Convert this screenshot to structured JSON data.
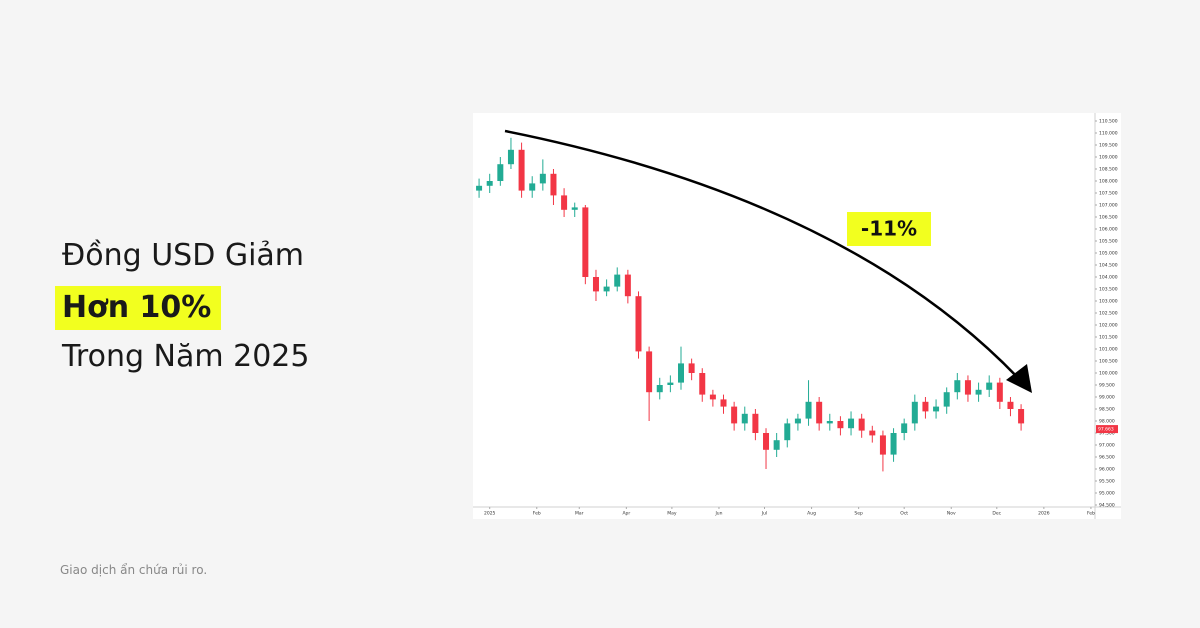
{
  "headline": {
    "line1": "Đồng USD Giảm",
    "highlight": "Hơn 10%",
    "line3": "Trong Năm 2025"
  },
  "disclaimer": "Giao dịch ẩn chứa rủi ro.",
  "chart_data": {
    "type": "candlestick",
    "annotation": "-11%",
    "up_color": "#22ab94",
    "down_color": "#f23645",
    "last_price": 97.663,
    "xlim": [
      -11,
      400
    ],
    "xticks": [
      {
        "value": 0,
        "label": "2025"
      },
      {
        "value": 31,
        "label": "Feb"
      },
      {
        "value": 59,
        "label": "Mar"
      },
      {
        "value": 90,
        "label": "Apr"
      },
      {
        "value": 120,
        "label": "May"
      },
      {
        "value": 151,
        "label": "Jun"
      },
      {
        "value": 181,
        "label": "Jul"
      },
      {
        "value": 212,
        "label": "Aug"
      },
      {
        "value": 243,
        "label": "Sep"
      },
      {
        "value": 273,
        "label": "Oct"
      },
      {
        "value": 304,
        "label": "Nov"
      },
      {
        "value": 334,
        "label": "Dec"
      },
      {
        "value": 365,
        "label": "2026"
      },
      {
        "value": 396,
        "label": "Feb"
      }
    ],
    "ylim": [
      94.5,
      110.5
    ],
    "yticks": [
      {
        "value": 94.5,
        "label": "94.500"
      },
      {
        "value": 95,
        "label": "95.000"
      },
      {
        "value": 95.5,
        "label": "95.500"
      },
      {
        "value": 96,
        "label": "96.000"
      },
      {
        "value": 96.5,
        "label": "96.500"
      },
      {
        "value": 97,
        "label": "97.000"
      },
      {
        "value": 97.5,
        "label": "97.500"
      },
      {
        "value": 98,
        "label": "98.000"
      },
      {
        "value": 98.5,
        "label": "98.500"
      },
      {
        "value": 99,
        "label": "99.000"
      },
      {
        "value": 99.5,
        "label": "99.500"
      },
      {
        "value": 100,
        "label": "100.000"
      },
      {
        "value": 100.5,
        "label": "100.500"
      },
      {
        "value": 101,
        "label": "101.000"
      },
      {
        "value": 101.5,
        "label": "101.500"
      },
      {
        "value": 102,
        "label": "102.000"
      },
      {
        "value": 102.5,
        "label": "102.500"
      },
      {
        "value": 103,
        "label": "103.000"
      },
      {
        "value": 103.5,
        "label": "103.500"
      },
      {
        "value": 104,
        "label": "104.000"
      },
      {
        "value": 104.5,
        "label": "104.500"
      },
      {
        "value": 105,
        "label": "105.000"
      },
      {
        "value": 105.5,
        "label": "105.500"
      },
      {
        "value": 106,
        "label": "106.000"
      },
      {
        "value": 106.5,
        "label": "106.500"
      },
      {
        "value": 107,
        "label": "107.000"
      },
      {
        "value": 107.5,
        "label": "107.500"
      },
      {
        "value": 108,
        "label": "108.000"
      },
      {
        "value": 108.5,
        "label": "108.500"
      },
      {
        "value": 109,
        "label": "109.000"
      },
      {
        "value": 109.5,
        "label": "109.500"
      },
      {
        "value": 110,
        "label": "110.000"
      },
      {
        "value": 110.5,
        "label": "110.500"
      }
    ],
    "x": [
      -7,
      0,
      7,
      14,
      21,
      28,
      35,
      42,
      49,
      56,
      63,
      70,
      77,
      84,
      91,
      98,
      105,
      112,
      119,
      126,
      133,
      140,
      147,
      154,
      161,
      168,
      175,
      182,
      189,
      196,
      203,
      210,
      217,
      224,
      231,
      238,
      245,
      252,
      259,
      266,
      273,
      280,
      287,
      294,
      301,
      308,
      315,
      322,
      329,
      336,
      343,
      350
    ],
    "open": [
      107.6,
      107.8,
      108.0,
      108.7,
      109.3,
      107.6,
      107.9,
      108.3,
      107.4,
      106.8,
      106.9,
      104.0,
      103.4,
      103.6,
      104.1,
      103.2,
      100.9,
      99.2,
      99.5,
      99.6,
      100.4,
      100.0,
      99.1,
      98.9,
      98.6,
      97.9,
      98.3,
      97.5,
      96.8,
      97.2,
      97.9,
      98.1,
      98.8,
      97.9,
      98.0,
      97.7,
      98.1,
      97.6,
      97.4,
      96.6,
      97.5,
      97.9,
      98.8,
      98.4,
      98.6,
      99.2,
      99.7,
      99.1,
      99.3,
      99.6,
      98.8,
      98.5
    ],
    "high": [
      108.1,
      108.3,
      109.0,
      109.8,
      109.6,
      108.2,
      108.9,
      108.5,
      107.7,
      107.1,
      107.0,
      104.3,
      103.9,
      104.4,
      104.3,
      103.4,
      101.1,
      99.8,
      99.9,
      101.1,
      100.6,
      100.2,
      99.3,
      99.1,
      98.8,
      98.6,
      98.5,
      97.7,
      97.5,
      98.1,
      98.3,
      99.7,
      99.0,
      98.3,
      98.2,
      98.4,
      98.3,
      97.8,
      97.6,
      97.7,
      98.1,
      99.1,
      99.0,
      98.9,
      99.4,
      100.0,
      99.9,
      99.6,
      99.9,
      99.8,
      99.0,
      98.7
    ],
    "low": [
      107.3,
      107.5,
      107.8,
      108.5,
      107.3,
      107.3,
      107.6,
      107.0,
      106.5,
      106.5,
      103.7,
      103.0,
      103.2,
      103.4,
      102.9,
      100.6,
      98.0,
      98.9,
      99.2,
      99.3,
      99.7,
      98.8,
      98.6,
      98.3,
      97.6,
      97.6,
      97.2,
      96.0,
      96.5,
      96.9,
      97.6,
      97.8,
      97.6,
      97.6,
      97.4,
      97.4,
      97.3,
      97.1,
      95.9,
      96.3,
      97.2,
      97.6,
      98.1,
      98.1,
      98.3,
      98.9,
      98.8,
      98.8,
      99.0,
      98.5,
      98.2,
      97.6
    ],
    "close": [
      107.8,
      108.0,
      108.7,
      109.3,
      107.6,
      107.9,
      108.3,
      107.4,
      106.8,
      106.9,
      104.0,
      103.4,
      103.6,
      104.1,
      103.2,
      100.9,
      99.2,
      99.5,
      99.6,
      100.4,
      100.0,
      99.1,
      98.9,
      98.6,
      97.9,
      98.3,
      97.5,
      96.8,
      97.2,
      97.9,
      98.1,
      98.8,
      97.9,
      98.0,
      97.7,
      98.1,
      97.6,
      97.4,
      96.6,
      97.5,
      97.9,
      98.8,
      98.4,
      98.6,
      99.2,
      99.7,
      99.1,
      99.3,
      99.6,
      98.8,
      98.5,
      97.9
    ]
  }
}
